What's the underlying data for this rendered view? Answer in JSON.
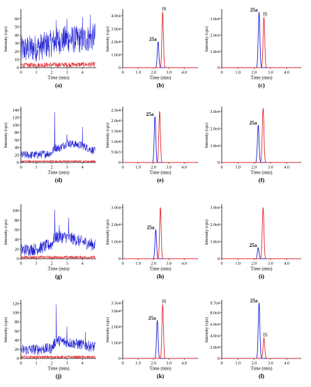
{
  "colors": {
    "blue": "#1d1dd6",
    "red": "#e0262b",
    "axis": "#000000"
  },
  "time_ticks": [
    "0",
    "1.0",
    "2.0",
    "3.0",
    "4.0"
  ],
  "time_ticks_short": [
    "0",
    "1",
    "2",
    "3",
    "4"
  ],
  "chart_data": [
    {
      "panel": "a",
      "type": "line",
      "xlabel": "Time (min)",
      "ylabel": "Intensity (cps)",
      "xlim": [
        0,
        4.9
      ],
      "ylim": [
        0,
        70
      ],
      "yticks": [
        "0",
        "10",
        "20",
        "30",
        "40",
        "50",
        "60"
      ],
      "xticks_style": "short",
      "series": [
        {
          "color": "blue",
          "kind": "noise",
          "points": [
            [
              0,
              22
            ],
            [
              1.0,
              24
            ],
            [
              2.0,
              30
            ],
            [
              2.2,
              32
            ],
            [
              3.0,
              35
            ],
            [
              4.0,
              34
            ],
            [
              4.8,
              38
            ]
          ],
          "amp": 17,
          "spikes": [
            [
              2.3,
              58
            ],
            [
              3.0,
              60
            ],
            [
              4.0,
              62
            ],
            [
              4.5,
              65
            ]
          ]
        },
        {
          "color": "red",
          "kind": "noise",
          "points": [
            [
              0,
              3
            ],
            [
              4.8,
              4
            ]
          ],
          "amp": 3,
          "spikes": []
        }
      ]
    },
    {
      "panel": "b",
      "type": "line",
      "xlabel": "Time (min)",
      "ylabel": "Intensity (cps)",
      "xlim": [
        0,
        4.9
      ],
      "ylim": [
        0,
        44000.0
      ],
      "yticks": [
        "0",
        "1.0e4",
        "2.0e4",
        "3.0e4",
        "4.0e4"
      ],
      "xticks_style": "long",
      "series": [
        {
          "color": "blue",
          "kind": "peak",
          "center": 2.3,
          "height": 20000.0,
          "width": 0.05,
          "label": "25a"
        },
        {
          "color": "red",
          "kind": "peak",
          "center": 2.6,
          "height": 43000.0,
          "width": 0.05,
          "label": "IS"
        }
      ]
    },
    {
      "panel": "c",
      "type": "line",
      "xlabel": "Time (min)",
      "ylabel": "Intensity (cps)",
      "xlim": [
        0,
        4.9
      ],
      "ylim": [
        0,
        35000.0
      ],
      "yticks": [
        "0",
        "1.0e4",
        "2.0e4",
        "3.0e4"
      ],
      "xticks_style": "long",
      "series": [
        {
          "color": "blue",
          "kind": "peak",
          "center": 2.3,
          "height": 34000.0,
          "width": 0.05,
          "label": "25a"
        },
        {
          "color": "red",
          "kind": "peak",
          "center": 2.6,
          "height": 31000.0,
          "width": 0.05,
          "label": "IS"
        }
      ]
    },
    {
      "panel": "d",
      "type": "line",
      "xlabel": "Time (min)",
      "ylabel": "Intensity (cps)",
      "xlim": [
        0,
        4.9
      ],
      "ylim": [
        0,
        145
      ],
      "yticks": [
        "0",
        "20",
        "40",
        "60",
        "80",
        "100",
        "120",
        "140"
      ],
      "xticks_style": "short",
      "series": [
        {
          "color": "blue",
          "kind": "noise",
          "points": [
            [
              0,
              20
            ],
            [
              1.0,
              20
            ],
            [
              2.0,
              25
            ],
            [
              2.2,
              40
            ],
            [
              2.5,
              38
            ],
            [
              3.0,
              52
            ],
            [
              4.0,
              45
            ],
            [
              4.8,
              30
            ]
          ],
          "amp": 11,
          "spikes": [
            [
              2.2,
              135
            ],
            [
              3.0,
              75
            ],
            [
              4.0,
              95
            ]
          ]
        },
        {
          "color": "red",
          "kind": "noise",
          "points": [
            [
              0,
              3
            ],
            [
              4.8,
              3
            ]
          ],
          "amp": 3,
          "spikes": []
        }
      ]
    },
    {
      "panel": "e",
      "type": "line",
      "xlabel": "Time (min)",
      "ylabel": "Intensity (cps)",
      "xlim": [
        0,
        4.9
      ],
      "ylim": [
        0,
        26000.0
      ],
      "yticks": [
        "0",
        "5.0e3",
        "1.0e4",
        "1.5e4",
        "2.0e4",
        "2.5e4"
      ],
      "xticks_style": "long",
      "series": [
        {
          "color": "blue",
          "kind": "peak",
          "center": 2.1,
          "height": 22000.0,
          "width": 0.05,
          "label": "25a"
        },
        {
          "color": "red",
          "kind": "peak",
          "center": 2.4,
          "height": 24500.0,
          "width": 0.05,
          "label": ""
        }
      ]
    },
    {
      "panel": "f",
      "type": "line",
      "xlabel": "Time (min)",
      "ylabel": "Intensity (cps)",
      "xlim": [
        0,
        4.9
      ],
      "ylim": [
        0,
        32000.0
      ],
      "yticks": [
        "0",
        "1.0e4",
        "2.0e4",
        "3.0e4"
      ],
      "xticks_style": "long",
      "series": [
        {
          "color": "blue",
          "kind": "peak",
          "center": 2.25,
          "height": 22000.0,
          "width": 0.05,
          "label": "25a"
        },
        {
          "color": "red",
          "kind": "peak",
          "center": 2.55,
          "height": 32000.0,
          "width": 0.05,
          "label": ""
        }
      ]
    },
    {
      "panel": "g",
      "type": "line",
      "xlabel": "Time (min)",
      "ylabel": "Intensity (cps)",
      "xlim": [
        0,
        4.9
      ],
      "ylim": [
        0,
        110
      ],
      "yticks": [
        "0",
        "20",
        "40",
        "60",
        "80",
        "100"
      ],
      "xticks_style": "short",
      "series": [
        {
          "color": "blue",
          "kind": "noise",
          "points": [
            [
              0,
              18
            ],
            [
              1.0,
              20
            ],
            [
              2.0,
              30
            ],
            [
              2.2,
              45
            ],
            [
              3.0,
              45
            ],
            [
              4.0,
              35
            ],
            [
              4.8,
              28
            ]
          ],
          "amp": 13,
          "spikes": [
            [
              2.2,
              102
            ],
            [
              3.1,
              85
            ],
            [
              2.5,
              70
            ]
          ]
        },
        {
          "color": "red",
          "kind": "noise",
          "points": [
            [
              0,
              3
            ],
            [
              4.8,
              3
            ]
          ],
          "amp": 3,
          "spikes": []
        }
      ]
    },
    {
      "panel": "h",
      "type": "line",
      "xlabel": "Time (min)",
      "ylabel": "Intensity (cps)",
      "xlim": [
        0,
        4.9
      ],
      "ylim": [
        0,
        31000.0
      ],
      "yticks": [
        "0",
        "1.0e4",
        "2.0e4",
        "3.0e4"
      ],
      "xticks_style": "long",
      "series": [
        {
          "color": "blue",
          "kind": "peak",
          "center": 2.15,
          "height": 17000.0,
          "width": 0.05,
          "label": "25a"
        },
        {
          "color": "red",
          "kind": "peak",
          "center": 2.45,
          "height": 30000.0,
          "width": 0.05,
          "label": ""
        }
      ]
    },
    {
      "panel": "i",
      "type": "line",
      "xlabel": "Time (min)",
      "ylabel": "Intensity (cps)",
      "xlim": [
        0,
        4.9
      ],
      "ylim": [
        0,
        31000.0
      ],
      "yticks": [
        "0",
        "1.0e4",
        "2.0e4",
        "3.0e4"
      ],
      "xticks_style": "long",
      "series": [
        {
          "color": "blue",
          "kind": "peak",
          "center": 2.25,
          "height": 6500.0,
          "width": 0.05,
          "label": "25a"
        },
        {
          "color": "red",
          "kind": "peak",
          "center": 2.55,
          "height": 30000.0,
          "width": 0.05,
          "label": ""
        }
      ]
    },
    {
      "panel": "j",
      "type": "line",
      "xlabel": "Time (min)",
      "ylabel": "Intensity (cps)",
      "xlim": [
        0,
        4.9
      ],
      "ylim": [
        0,
        125
      ],
      "yticks": [
        "0",
        "20",
        "40",
        "60",
        "80",
        "100",
        "120"
      ],
      "xticks_style": "short",
      "series": [
        {
          "color": "blue",
          "kind": "noise",
          "points": [
            [
              0,
              18
            ],
            [
              1.0,
              20
            ],
            [
              2.0,
              22
            ],
            [
              2.3,
              40
            ],
            [
              3.0,
              35
            ],
            [
              4.0,
              30
            ],
            [
              4.8,
              25
            ]
          ],
          "amp": 12,
          "spikes": [
            [
              2.3,
              118
            ],
            [
              3.0,
              70
            ],
            [
              4.2,
              58
            ]
          ]
        },
        {
          "color": "red",
          "kind": "noise",
          "points": [
            [
              0,
              3
            ],
            [
              4.8,
              3
            ]
          ],
          "amp": 3,
          "spikes": []
        }
      ]
    },
    {
      "panel": "k",
      "type": "line",
      "xlabel": "Time (min)",
      "ylabel": "Intensity (cps)",
      "xlim": [
        0,
        4.9
      ],
      "ylim": [
        0,
        36000.0
      ],
      "yticks": [
        "0",
        "1.0e4",
        "2.0e4",
        "3.0e4",
        "3.5e4"
      ],
      "xticks_style": "long",
      "series": [
        {
          "color": "blue",
          "kind": "peak",
          "center": 2.25,
          "height": 24000.0,
          "width": 0.05,
          "label": "25a"
        },
        {
          "color": "red",
          "kind": "peak",
          "center": 2.6,
          "height": 34000.0,
          "width": 0.05,
          "label": "IS"
        }
      ]
    },
    {
      "panel": "l",
      "type": "line",
      "xlabel": "Time (min)",
      "ylabel": "Intensity (cps)",
      "xlim": [
        0,
        4.9
      ],
      "ylim": [
        0,
        100000.0
      ],
      "yticks": [
        "0",
        "2.0e4",
        "4.0e4",
        "6.0e4",
        "8.0e4",
        "9.7e4"
      ],
      "xticks_style": "long",
      "series": [
        {
          "color": "blue",
          "kind": "peak",
          "center": 2.3,
          "height": 97000.0,
          "width": 0.05,
          "label": "25a"
        },
        {
          "color": "red",
          "kind": "peak",
          "center": 2.6,
          "height": 36000.0,
          "width": 0.05,
          "label": "IS"
        }
      ]
    }
  ]
}
